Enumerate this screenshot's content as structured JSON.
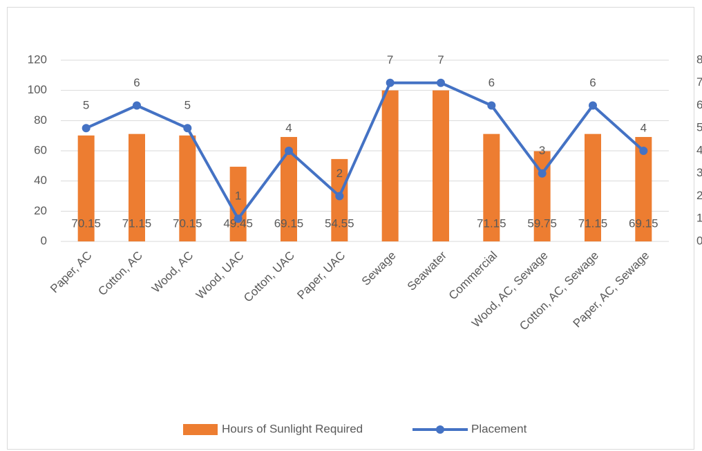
{
  "chart_data": {
    "type": "combo",
    "categories": [
      "Paper, AC",
      "Cotton, AC",
      "Wood, AC",
      "Wood, UAC",
      "Cotton, UAC",
      "Paper, UAC",
      "Sewage",
      "Seawater",
      "Commercial",
      "Wood, AC, Sewage",
      "Cotton, AC, Sewage",
      "Paper, AC, Sewage"
    ],
    "series": [
      {
        "name": "Hours of Sunlight Required",
        "type": "bar",
        "color": "#ed7d31",
        "values": [
          70.15,
          71.15,
          70.15,
          49.45,
          69.15,
          54.55,
          100,
          100,
          71.15,
          59.75,
          71.15,
          69.15
        ],
        "value_labels": [
          "70.15",
          "71.15",
          "70.15",
          "49.45",
          "69.15",
          "54.55",
          null,
          null,
          "71.15",
          "59.75",
          "71.15",
          "69.15"
        ]
      },
      {
        "name": "Placement",
        "type": "line",
        "axis": "y2",
        "color": "#4472c4",
        "values": [
          5,
          6,
          5,
          1,
          4,
          2,
          7,
          7,
          6,
          3,
          6,
          4
        ]
      }
    ],
    "ylim": [
      0,
      120
    ],
    "yticks": [
      0,
      20,
      40,
      60,
      80,
      100,
      120
    ],
    "y2lim": [
      0,
      8
    ],
    "y2ticks": [
      0,
      1,
      2,
      3,
      4,
      5,
      6,
      7,
      8
    ],
    "grid": true,
    "legend": "bottom"
  }
}
